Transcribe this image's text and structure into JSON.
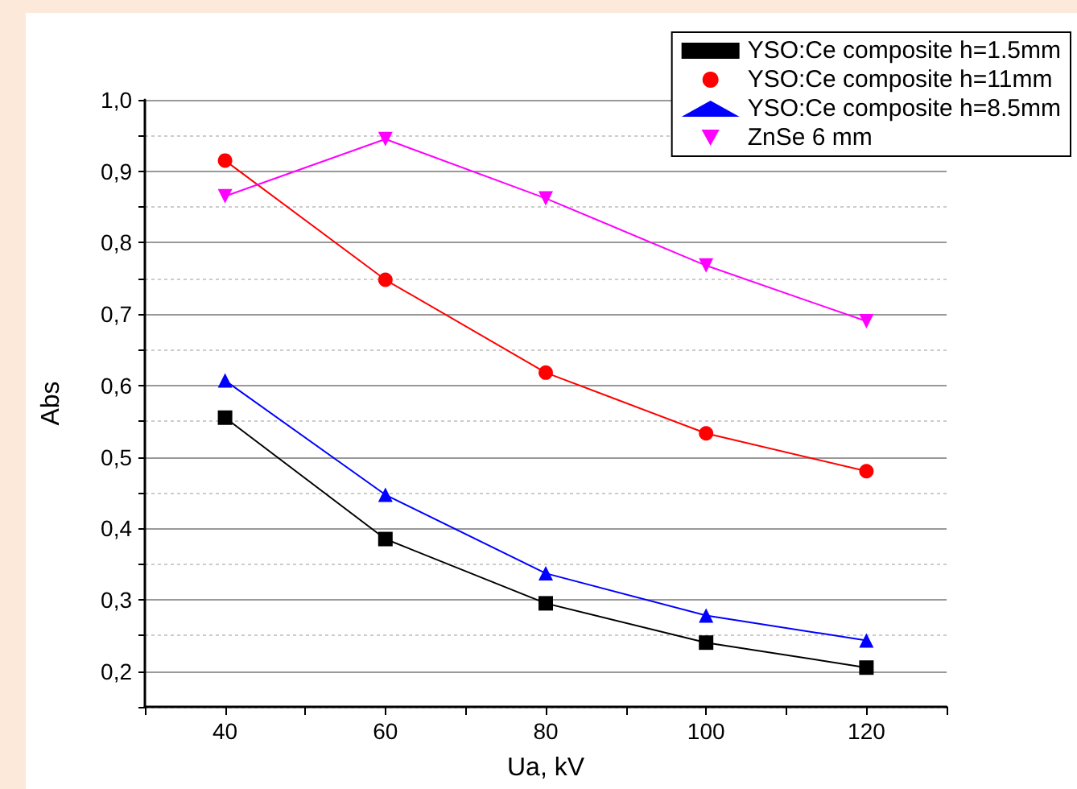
{
  "chart_data": {
    "type": "line",
    "xlabel": "Ua, kV",
    "ylabel": "Abs",
    "x": [
      40,
      60,
      80,
      100,
      120
    ],
    "series": [
      {
        "name": "YSO:Ce composite h=1.5mm",
        "color": "#000000",
        "marker": "square",
        "values": [
          0.555,
          0.385,
          0.295,
          0.24,
          0.205
        ]
      },
      {
        "name": "YSO:Ce composite h=11mm",
        "color": "#ff0000",
        "marker": "circle",
        "values": [
          0.915,
          0.748,
          0.618,
          0.533,
          0.48
        ]
      },
      {
        "name": "YSO:Ce composite h=8.5mm",
        "color": "#0000ff",
        "marker": "triangle",
        "values": [
          0.607,
          0.447,
          0.337,
          0.278,
          0.243
        ]
      },
      {
        "name": "ZnSe 6 mm",
        "color": "#ff00ff",
        "marker": "triangle-down",
        "values": [
          0.865,
          0.945,
          0.862,
          0.768,
          0.69
        ]
      }
    ],
    "xlim": [
      30,
      130
    ],
    "xticks": [
      {
        "value": 30,
        "label": null
      },
      40,
      {
        "value": 50,
        "label": null
      },
      60,
      {
        "value": 70,
        "label": null
      },
      80,
      {
        "value": 90,
        "label": null
      },
      100,
      {
        "value": 110,
        "label": null
      },
      120,
      {
        "value": 130,
        "label": null
      }
    ],
    "ylim": [
      0.15,
      1.0
    ],
    "yticks": [
      {
        "value": 0.15,
        "label": null
      },
      {
        "value": 0.2,
        "label": "0,2"
      },
      {
        "value": 0.25,
        "label": null
      },
      {
        "value": 0.3,
        "label": "0,3"
      },
      {
        "value": 0.35,
        "label": null
      },
      {
        "value": 0.4,
        "label": "0,4"
      },
      {
        "value": 0.45,
        "label": null
      },
      {
        "value": 0.5,
        "label": "0,5"
      },
      {
        "value": 0.55,
        "label": null
      },
      {
        "value": 0.6,
        "label": "0,6"
      },
      {
        "value": 0.65,
        "label": null
      },
      {
        "value": 0.7,
        "label": "0,7"
      },
      {
        "value": 0.75,
        "label": null
      },
      {
        "value": 0.8,
        "label": "0,8"
      },
      {
        "value": 0.85,
        "label": null
      },
      {
        "value": 0.9,
        "label": "0,9"
      },
      {
        "value": 0.95,
        "label": null
      },
      {
        "value": 1.0,
        "label": "1,0"
      }
    ],
    "grid": "y",
    "legend": "top right",
    "line_style": "solid"
  }
}
